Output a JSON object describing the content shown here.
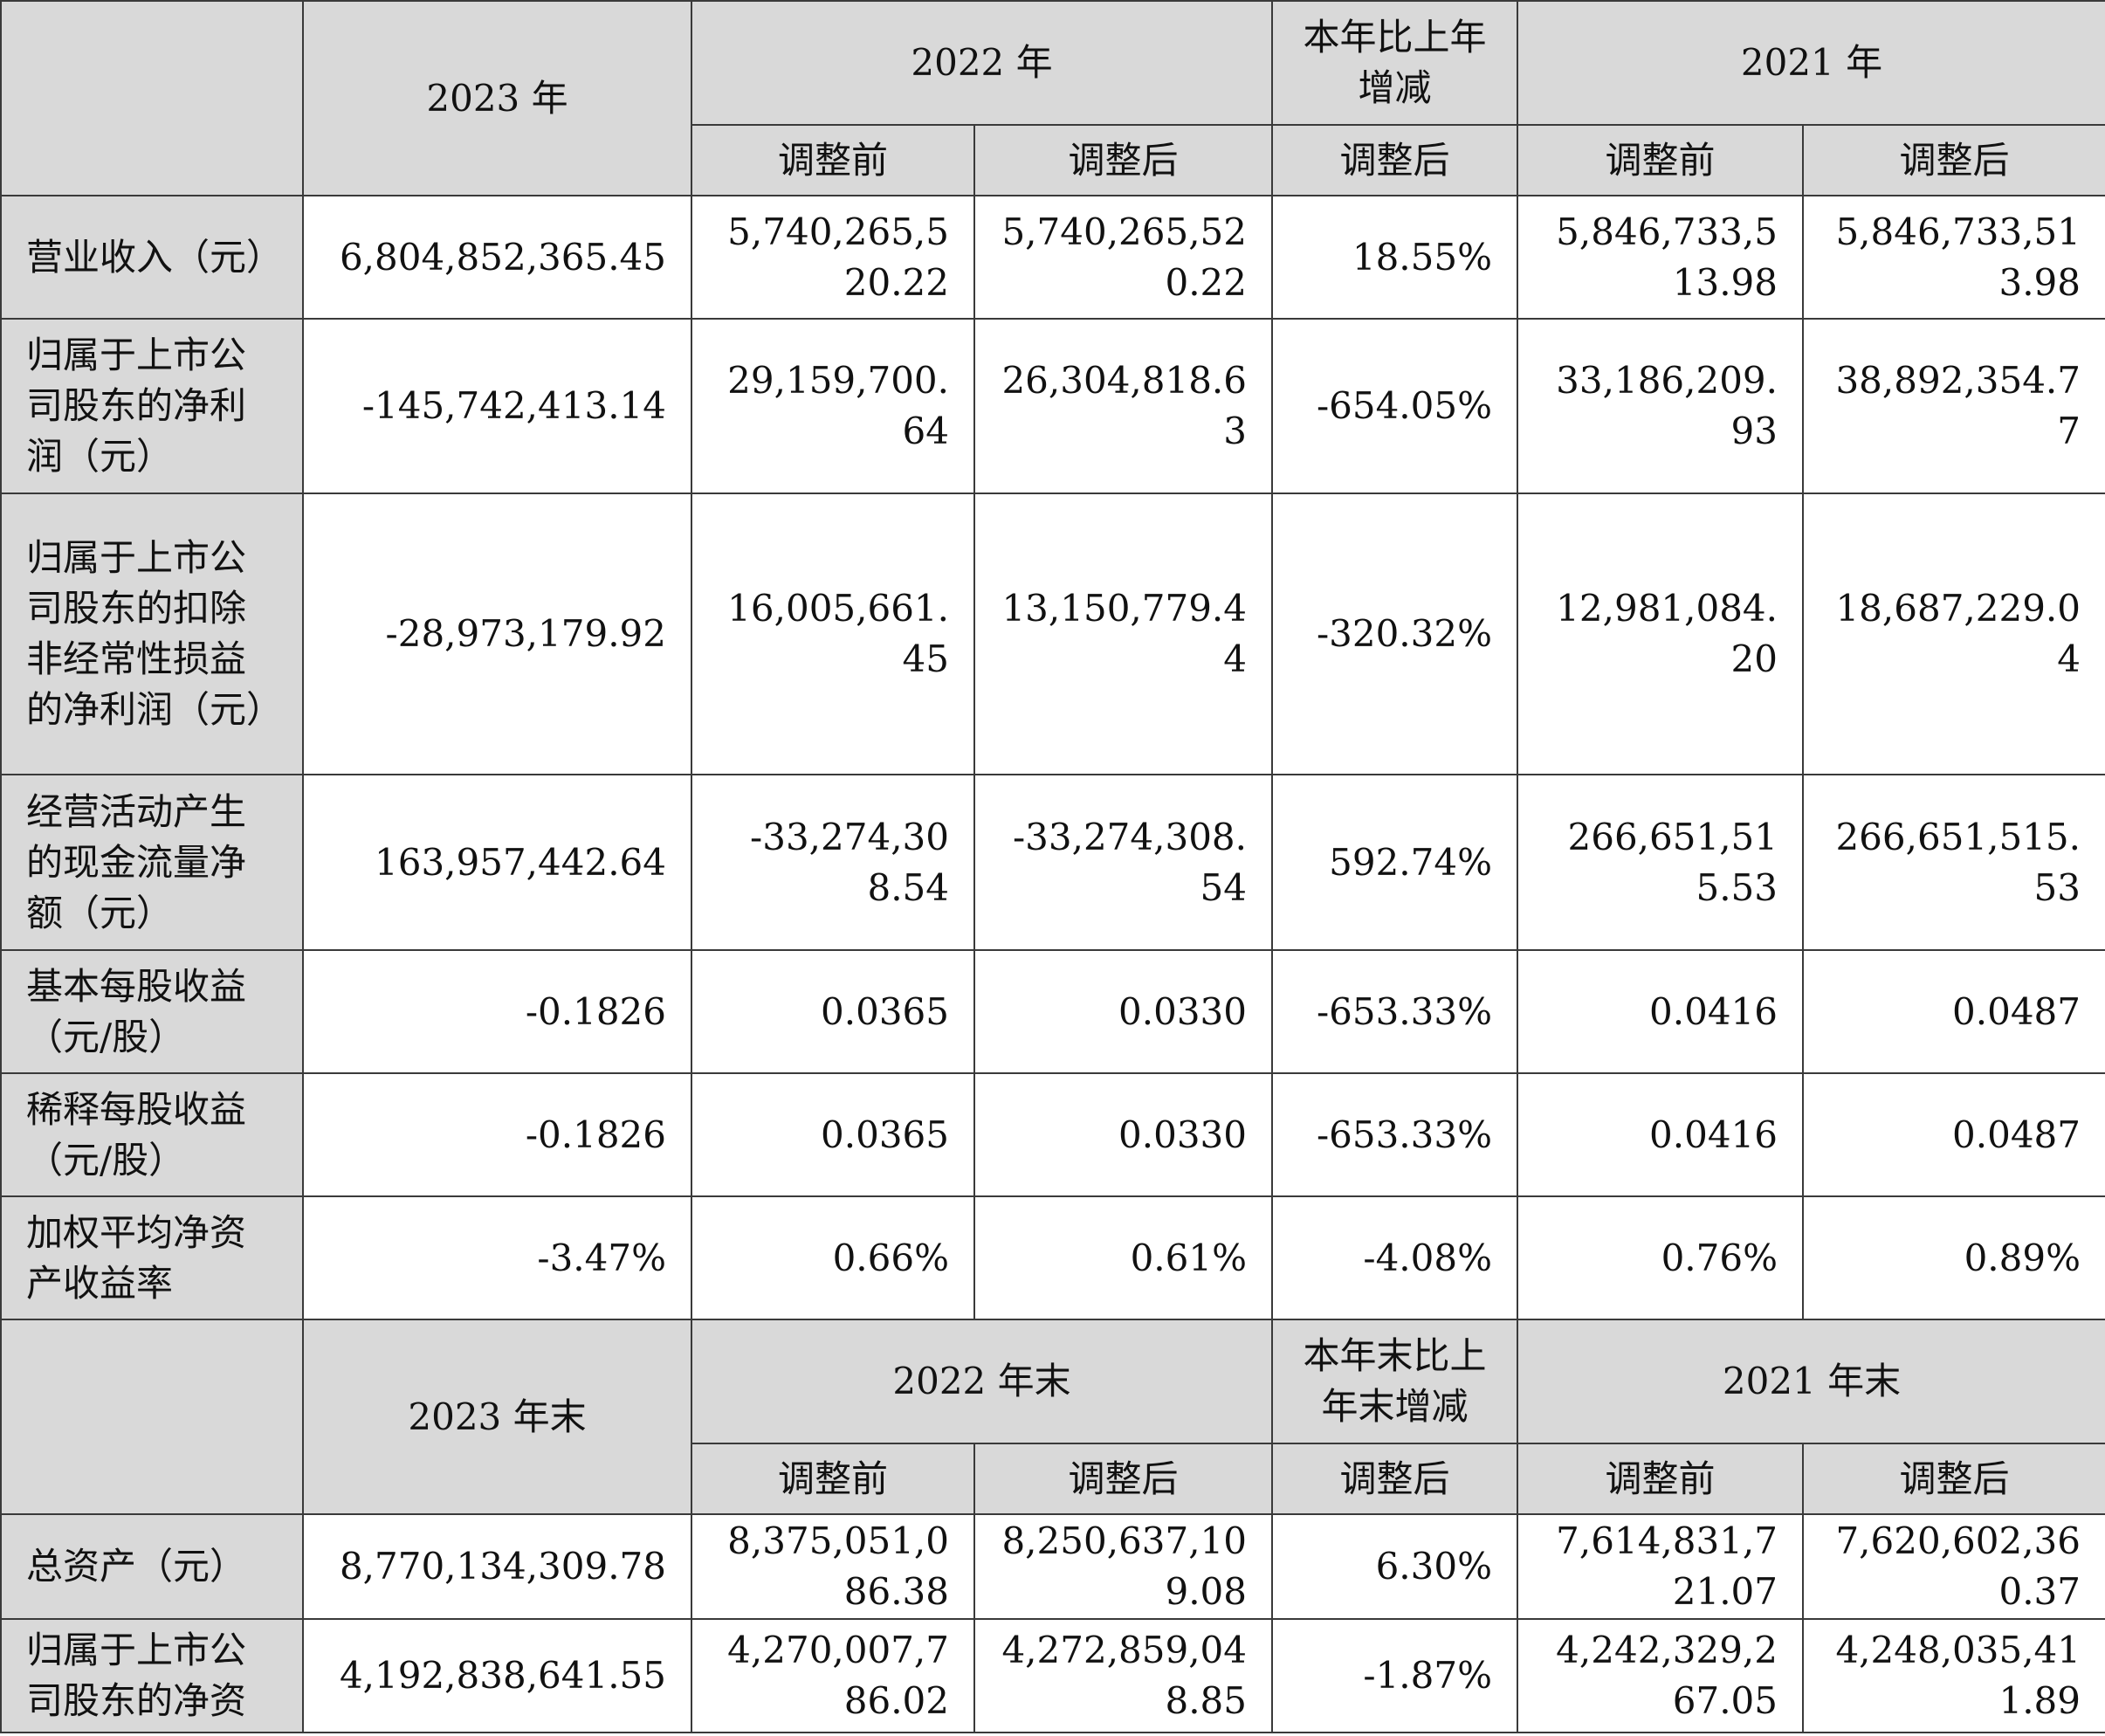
{
  "section1": {
    "header": {
      "y2023": "2023 年",
      "y2022": "2022 年",
      "change": "本年比上年增减",
      "y2021": "2021 年",
      "before": "调整前",
      "after": "调整后",
      "change_sub": "调整后",
      "before_2021": "调整前",
      "after_2021": "调整后"
    },
    "rows": [
      {
        "label": "营业收入（元）",
        "y2023": "6,804,852,365.45",
        "y2022_before": "5,740,265,520.22",
        "y2022_after": "5,740,265,520.22",
        "change": "18.55%",
        "y2021_before": "5,846,733,513.98",
        "y2021_after": "5,846,733,513.98"
      },
      {
        "label": "归属于上市公司股东的净利润（元）",
        "y2023": "-145,742,413.14",
        "y2022_before": "29,159,700.64",
        "y2022_after": "26,304,818.63",
        "change": "-654.05%",
        "y2021_before": "33,186,209.93",
        "y2021_after": "38,892,354.77"
      },
      {
        "label": "归属于上市公司股东的扣除非经常性损益的净利润（元）",
        "y2023": "-28,973,179.92",
        "y2022_before": "16,005,661.45",
        "y2022_after": "13,150,779.44",
        "change": "-320.32%",
        "y2021_before": "12,981,084.20",
        "y2021_after": "18,687,229.04"
      },
      {
        "label": "经营活动产生的现金流量净额（元）",
        "y2023": "163,957,442.64",
        "y2022_before": "-33,274,308.54",
        "y2022_after": "-33,274,308.54",
        "change": "592.74%",
        "y2021_before": "266,651,515.53",
        "y2021_after": "266,651,515.53"
      },
      {
        "label": "基本每股收益（元/股）",
        "y2023": "-0.1826",
        "y2022_before": "0.0365",
        "y2022_after": "0.0330",
        "change": "-653.33%",
        "y2021_before": "0.0416",
        "y2021_after": "0.0487"
      },
      {
        "label": "稀释每股收益（元/股）",
        "y2023": "-0.1826",
        "y2022_before": "0.0365",
        "y2022_after": "0.0330",
        "change": "-653.33%",
        "y2021_before": "0.0416",
        "y2021_after": "0.0487"
      },
      {
        "label": "加权平均净资产收益率",
        "y2023": "-3.47%",
        "y2022_before": "0.66%",
        "y2022_after": "0.61%",
        "change": "-4.08%",
        "y2021_before": "0.76%",
        "y2021_after": "0.89%"
      }
    ]
  },
  "section2": {
    "header": {
      "y2023": "2023 年末",
      "y2022": "2022 年末",
      "change": "本年末比上年末增减",
      "y2021": "2021 年末",
      "before": "调整前",
      "after": "调整后",
      "change_sub": "调整后",
      "before_2021": "调整前",
      "after_2021": "调整后"
    },
    "rows": [
      {
        "label": "总资产（元）",
        "y2023": "8,770,134,309.78",
        "y2022_before": "8,375,051,086.38",
        "y2022_after": "8,250,637,109.08",
        "change": "6.30%",
        "y2021_before": "7,614,831,721.07",
        "y2021_after": "7,620,602,360.37"
      },
      {
        "label": "归属于上市公司股东的净资",
        "y2023": "4,192,838,641.55",
        "y2022_before": "4,270,007,786.02",
        "y2022_after": "4,272,859,048.85",
        "change": "-1.87%",
        "y2021_before": "4,242,329,267.05",
        "y2021_after": "4,248,035,411.89"
      }
    ]
  }
}
